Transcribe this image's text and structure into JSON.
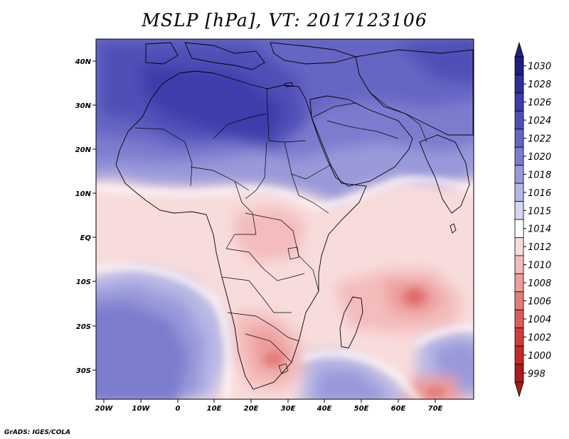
{
  "title": "MSLP [hPa], VT: 2017123106",
  "credit": "GrADS: IGES/COLA",
  "axes": {
    "lon_labels": [
      "20W",
      "10W",
      "0",
      "10E",
      "20E",
      "30E",
      "40E",
      "50E",
      "60E",
      "70E"
    ],
    "lat_labels": [
      "40N",
      "30N",
      "20N",
      "10N",
      "EQ",
      "10S",
      "20S",
      "30S"
    ]
  },
  "colorbar": {
    "levels": [
      "1030",
      "1028",
      "1026",
      "1024",
      "1022",
      "1020",
      "1018",
      "1016",
      "1015",
      "1014",
      "1012",
      "1010",
      "1008",
      "1006",
      "1004",
      "1002",
      "1000",
      "998"
    ],
    "colors": [
      "#1e1e82",
      "#2d2d9b",
      "#3c3cac",
      "#4f4fb8",
      "#6565c4",
      "#7c7ccf",
      "#9999da",
      "#b7b7e6",
      "#d6d6f2",
      "#ffffff",
      "#f8dcdc",
      "#f4bcbc",
      "#ec9c9c",
      "#e47c7c",
      "#dc5c5c",
      "#d43c3c",
      "#c42a2a",
      "#a81c1c"
    ]
  },
  "map_features": {
    "cities_icon": "coastline-outline"
  }
}
